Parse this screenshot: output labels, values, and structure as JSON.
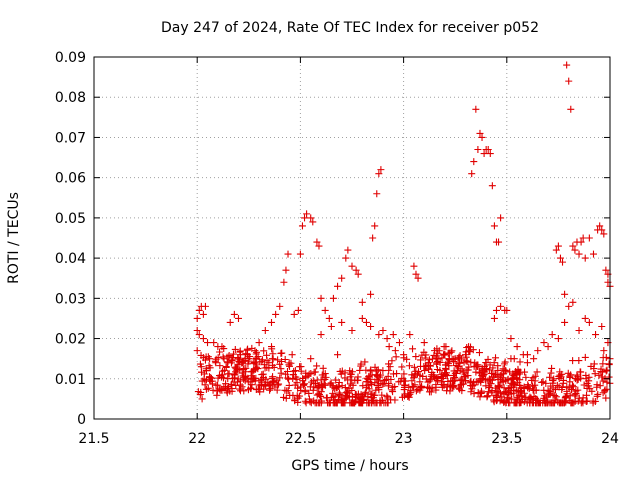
{
  "chart_data": {
    "type": "scatter",
    "title": "Day 247 of 2024, Rate Of TEC Index for receiver p052",
    "xlabel": "GPS time / hours",
    "ylabel": "ROTI / TECUs",
    "xlim": [
      21.5,
      24
    ],
    "ylim": [
      0,
      0.09
    ],
    "x_ticks": [
      21.5,
      22,
      22.5,
      23,
      23.5,
      24
    ],
    "x_tick_labels": [
      "21.5",
      "22",
      "22.5",
      "23",
      "23.5",
      "24"
    ],
    "y_ticks": [
      0,
      0.01,
      0.02,
      0.03,
      0.04,
      0.05,
      0.06,
      0.07,
      0.08,
      0.09
    ],
    "y_tick_labels": [
      "0",
      "0.01",
      "0.02",
      "0.03",
      "0.04",
      "0.05",
      "0.06",
      "0.07",
      "0.08",
      "0.09"
    ],
    "grid": true,
    "marker": "+",
    "color": "#e00000",
    "series": [
      {
        "name": "ROTI",
        "points": [
          [
            22.0,
            0.025
          ],
          [
            22.01,
            0.027
          ],
          [
            22.02,
            0.028
          ],
          [
            22.03,
            0.026
          ],
          [
            22.04,
            0.028
          ],
          [
            22.0,
            0.022
          ],
          [
            22.01,
            0.021
          ],
          [
            22.03,
            0.02
          ],
          [
            22.05,
            0.019
          ],
          [
            22.08,
            0.019
          ],
          [
            22.1,
            0.018
          ],
          [
            22.12,
            0.018
          ],
          [
            22.16,
            0.024
          ],
          [
            22.18,
            0.026
          ],
          [
            22.2,
            0.025
          ],
          [
            22.0,
            0.017
          ],
          [
            22.02,
            0.013
          ],
          [
            22.06,
            0.015
          ],
          [
            22.09,
            0.014
          ],
          [
            22.13,
            0.015
          ],
          [
            22.21,
            0.016
          ],
          [
            22.25,
            0.015
          ],
          [
            22.3,
            0.019
          ],
          [
            22.33,
            0.022
          ],
          [
            22.36,
            0.024
          ],
          [
            22.38,
            0.026
          ],
          [
            22.4,
            0.028
          ],
          [
            22.42,
            0.034
          ],
          [
            22.43,
            0.037
          ],
          [
            22.44,
            0.041
          ],
          [
            22.47,
            0.026
          ],
          [
            22.49,
            0.027
          ],
          [
            22.5,
            0.041
          ],
          [
            22.51,
            0.048
          ],
          [
            22.52,
            0.05
          ],
          [
            22.53,
            0.051
          ],
          [
            22.55,
            0.05
          ],
          [
            22.56,
            0.049
          ],
          [
            22.58,
            0.044
          ],
          [
            22.59,
            0.043
          ],
          [
            22.6,
            0.03
          ],
          [
            22.62,
            0.027
          ],
          [
            22.64,
            0.025
          ],
          [
            22.66,
            0.03
          ],
          [
            22.68,
            0.033
          ],
          [
            22.7,
            0.035
          ],
          [
            22.72,
            0.04
          ],
          [
            22.73,
            0.042
          ],
          [
            22.75,
            0.038
          ],
          [
            22.77,
            0.037
          ],
          [
            22.78,
            0.036
          ],
          [
            22.8,
            0.029
          ],
          [
            22.82,
            0.024
          ],
          [
            22.84,
            0.031
          ],
          [
            22.85,
            0.045
          ],
          [
            22.86,
            0.048
          ],
          [
            22.87,
            0.056
          ],
          [
            22.88,
            0.061
          ],
          [
            22.89,
            0.062
          ],
          [
            22.9,
            0.022
          ],
          [
            22.93,
            0.018
          ],
          [
            22.96,
            0.017
          ],
          [
            23.0,
            0.016
          ],
          [
            23.03,
            0.021
          ],
          [
            23.05,
            0.038
          ],
          [
            23.06,
            0.036
          ],
          [
            23.07,
            0.035
          ],
          [
            23.1,
            0.019
          ],
          [
            23.15,
            0.017
          ],
          [
            23.2,
            0.016
          ],
          [
            23.25,
            0.015
          ],
          [
            23.3,
            0.016
          ],
          [
            23.33,
            0.061
          ],
          [
            23.34,
            0.064
          ],
          [
            23.35,
            0.077
          ],
          [
            23.36,
            0.067
          ],
          [
            23.37,
            0.071
          ],
          [
            23.38,
            0.07
          ],
          [
            23.39,
            0.066
          ],
          [
            23.4,
            0.067
          ],
          [
            23.41,
            0.067
          ],
          [
            23.42,
            0.066
          ],
          [
            23.43,
            0.058
          ],
          [
            23.44,
            0.048
          ],
          [
            23.45,
            0.044
          ],
          [
            23.46,
            0.044
          ],
          [
            23.47,
            0.05
          ],
          [
            23.44,
            0.025
          ],
          [
            23.45,
            0.027
          ],
          [
            23.47,
            0.028
          ],
          [
            23.49,
            0.027
          ],
          [
            23.5,
            0.027
          ],
          [
            23.52,
            0.02
          ],
          [
            23.55,
            0.018
          ],
          [
            23.6,
            0.016
          ],
          [
            23.65,
            0.017
          ],
          [
            23.7,
            0.018
          ],
          [
            23.74,
            0.042
          ],
          [
            23.75,
            0.043
          ],
          [
            23.76,
            0.04
          ],
          [
            23.77,
            0.039
          ],
          [
            23.78,
            0.031
          ],
          [
            23.79,
            0.088
          ],
          [
            23.8,
            0.084
          ],
          [
            23.81,
            0.077
          ],
          [
            23.82,
            0.043
          ],
          [
            23.83,
            0.042
          ],
          [
            23.84,
            0.044
          ],
          [
            23.85,
            0.041
          ],
          [
            23.86,
            0.044
          ],
          [
            23.87,
            0.045
          ],
          [
            23.88,
            0.04
          ],
          [
            23.9,
            0.045
          ],
          [
            23.92,
            0.041
          ],
          [
            23.94,
            0.047
          ],
          [
            23.95,
            0.048
          ],
          [
            23.96,
            0.047
          ],
          [
            23.97,
            0.046
          ],
          [
            23.98,
            0.037
          ],
          [
            23.99,
            0.034
          ],
          [
            24.0,
            0.033
          ],
          [
            23.99,
            0.036
          ],
          [
            23.96,
            0.023
          ],
          [
            23.93,
            0.021
          ],
          [
            23.9,
            0.024
          ],
          [
            23.88,
            0.025
          ],
          [
            23.85,
            0.022
          ],
          [
            23.82,
            0.029
          ],
          [
            23.8,
            0.028
          ],
          [
            23.78,
            0.024
          ],
          [
            23.75,
            0.02
          ],
          [
            23.72,
            0.021
          ],
          [
            23.68,
            0.019
          ],
          [
            23.63,
            0.015
          ],
          [
            23.58,
            0.016
          ],
          [
            23.99,
            0.019
          ],
          [
            24.0,
            0.015
          ],
          [
            23.97,
            0.017
          ],
          [
            22.6,
            0.021
          ],
          [
            22.65,
            0.023
          ],
          [
            22.7,
            0.024
          ],
          [
            22.75,
            0.022
          ],
          [
            22.8,
            0.025
          ],
          [
            22.84,
            0.023
          ],
          [
            22.88,
            0.021
          ],
          [
            22.92,
            0.02
          ],
          [
            22.95,
            0.021
          ],
          [
            22.98,
            0.019
          ],
          [
            22.36,
            0.018
          ],
          [
            22.28,
            0.017
          ],
          [
            22.22,
            0.014
          ],
          [
            22.46,
            0.016
          ],
          [
            22.55,
            0.015
          ],
          [
            22.68,
            0.016
          ],
          [
            23.12,
            0.014
          ],
          [
            23.22,
            0.015
          ],
          [
            23.4,
            0.014
          ],
          [
            23.52,
            0.015
          ],
          [
            23.6,
            0.014
          ]
        ]
      }
    ],
    "dense_band": {
      "x_range": [
        22.0,
        24.0
      ],
      "y_range": [
        0.004,
        0.014
      ]
    }
  }
}
